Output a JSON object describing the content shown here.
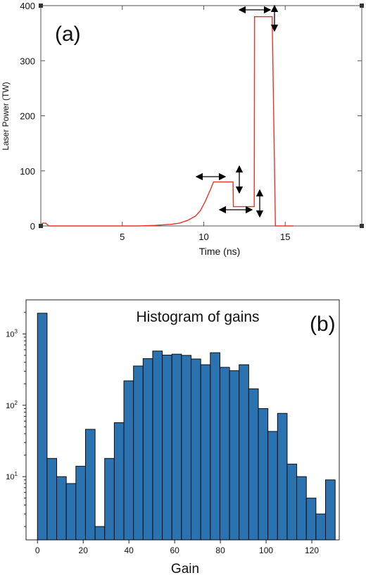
{
  "chart_data": [
    {
      "type": "line",
      "panel_label": "(a)",
      "title": "",
      "xlabel": "Time (ns)",
      "ylabel": "Laser Power (TW)",
      "xlim": [
        0,
        19.7
      ],
      "ylim": [
        0,
        400
      ],
      "x_ticks": [
        5,
        10,
        15
      ],
      "y_ticks": [
        0,
        100,
        200,
        300,
        400
      ],
      "grid": false,
      "line_color": "#e8332c",
      "series": [
        {
          "x": [
            0.0,
            0.1,
            0.3,
            0.5,
            1.0,
            3.0,
            6.0,
            7.0,
            8.0,
            8.5,
            9.0,
            9.5,
            9.8,
            10.1,
            10.4,
            10.6,
            11.8,
            11.82,
            13.1,
            13.12,
            14.2,
            14.4
          ],
          "y": [
            0,
            5,
            5,
            0,
            0,
            0,
            0,
            1,
            3,
            5,
            10,
            18,
            28,
            45,
            65,
            80,
            80,
            35,
            35,
            380,
            380,
            0
          ]
        }
      ],
      "annotations": "double-headed arrows marking adjustable pulse durations and power levels"
    },
    {
      "type": "bar",
      "panel_label": "(b)",
      "title": "Histogram of gains",
      "xlabel": "Gain",
      "ylabel": "",
      "y_scale": "log",
      "xlim": [
        -5,
        132
      ],
      "ylim": [
        1.3,
        3000
      ],
      "x_ticks": [
        0,
        20,
        40,
        60,
        80,
        100,
        120
      ],
      "y_ticks": [
        {
          "value": 10,
          "label_base": "10",
          "label_exp": "1"
        },
        {
          "value": 100,
          "label_base": "10",
          "label_exp": "2"
        },
        {
          "value": 1000,
          "label_base": "10",
          "label_exp": "3"
        }
      ],
      "bar_color": "#2b73b0",
      "bin_width": 4.2,
      "bin_start": 0,
      "values": [
        1950,
        18,
        10,
        8,
        14,
        46,
        2,
        18,
        57,
        220,
        355,
        450,
        575,
        505,
        520,
        500,
        445,
        370,
        545,
        340,
        305,
        370,
        170,
        90,
        43,
        77,
        15,
        10,
        5,
        3,
        9
      ]
    }
  ]
}
